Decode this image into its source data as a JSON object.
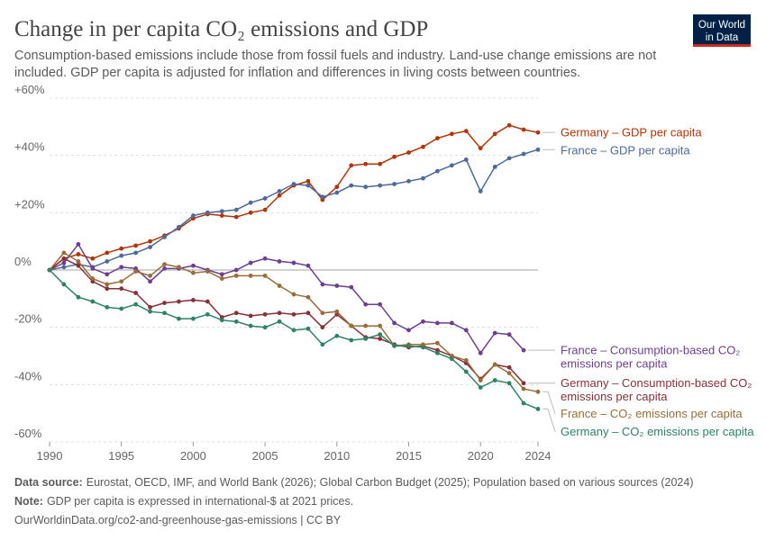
{
  "logo": [
    "Our World",
    "in Data"
  ],
  "chart_data": {
    "type": "line",
    "title": "Change in per capita CO₂ emissions and GDP",
    "subtitle": [
      "Consumption-based emissions include those from fossil fuels and industry. Land-use change emissions are not",
      "included. GDP per capita is adjusted for inflation and differences in living costs between countries."
    ],
    "source_label": "Data source:",
    "source": "Eurostat, OECD, IMF, and World Bank (2026); Global Carbon Budget (2025); Population based on various sources (2024)",
    "note_label": "Note:",
    "note": "GDP per capita is expressed in international-$ at 2021 prices.",
    "url": "OurWorldinData.org/co2-and-greenhouse-gas-emissions | CC BY",
    "x": [
      1990,
      1991,
      1992,
      1993,
      1994,
      1995,
      1996,
      1997,
      1998,
      1999,
      2000,
      2001,
      2002,
      2003,
      2004,
      2005,
      2006,
      2007,
      2008,
      2009,
      2010,
      2011,
      2012,
      2013,
      2014,
      2015,
      2016,
      2017,
      2018,
      2019,
      2020,
      2021,
      2022,
      2023,
      2024
    ],
    "xlim": [
      1990,
      2024
    ],
    "xticks": [
      1990,
      1995,
      2000,
      2005,
      2010,
      2015,
      2020,
      2024
    ],
    "ylim": [
      -60,
      60
    ],
    "yticks": [
      {
        "value": 60,
        "label": "+60%"
      },
      {
        "value": 40,
        "label": "+40%"
      },
      {
        "value": 20,
        "label": "+20%"
      },
      {
        "value": 0,
        "label": "0%"
      },
      {
        "value": -20,
        "label": "-20%"
      },
      {
        "value": -40,
        "label": "-40%"
      },
      {
        "value": -60,
        "label": "-60%"
      }
    ],
    "grid": true,
    "series": [
      {
        "name": "Germany – GDP per capita",
        "color": "#b13507",
        "values": [
          0,
          4,
          5.5,
          4,
          6,
          7.5,
          8.5,
          10,
          12,
          14.5,
          18,
          19.5,
          19,
          18.5,
          20,
          21,
          26,
          29.5,
          31,
          24.5,
          29,
          36.5,
          37,
          37,
          39.5,
          41,
          43,
          46,
          47.5,
          48.5,
          42.5,
          47.5,
          50.5,
          49,
          48
        ]
      },
      {
        "name": "France – GDP per capita",
        "color": "#4c6a9c",
        "values": [
          0,
          1,
          2,
          1,
          3,
          5,
          6,
          8,
          11.5,
          15,
          19,
          20,
          20.5,
          21,
          23.5,
          25,
          27.5,
          30,
          29.5,
          25.5,
          27,
          29.5,
          29,
          29.5,
          30,
          31,
          32,
          34.5,
          36.5,
          38.5,
          27.5,
          36,
          39,
          40.5,
          42
        ]
      },
      {
        "name": "France – Consumption-based CO₂ emissions per capita",
        "color": "#6d3e91",
        "values": [
          0,
          2.5,
          9,
          0.5,
          -1.5,
          1,
          0.5,
          -4,
          0.5,
          0.5,
          1.5,
          0,
          -1.5,
          0,
          2.5,
          4,
          3,
          2.5,
          1.5,
          -5,
          -5.5,
          -6,
          -12,
          -12,
          -18.5,
          -21,
          -18,
          -18.5,
          -18.5,
          -21,
          -29,
          -22,
          -22.5,
          -28,
          null
        ]
      },
      {
        "name": "Germany – Consumption-based CO₂ emissions per capita",
        "color": "#883039",
        "values": [
          0,
          4,
          1.5,
          -4,
          -6.5,
          -6.5,
          -8,
          -13,
          -11.5,
          -11,
          -10.5,
          -11,
          -16.5,
          -15,
          -16,
          -15.5,
          -15,
          -15.5,
          -15,
          -20,
          -15.5,
          -19.5,
          -23.5,
          -24,
          -26,
          -27,
          -26.5,
          -28,
          -30,
          -32.5,
          -38,
          -33,
          -34,
          -39.5,
          null
        ]
      },
      {
        "name": "France – CO₂ emissions per capita",
        "color": "#996d39",
        "values": [
          0,
          6,
          3,
          -3,
          -5,
          -4,
          -0.5,
          -2,
          2,
          1,
          -1,
          -0.5,
          -3,
          -2,
          -2,
          -2,
          -5.5,
          -8.5,
          -9.5,
          -15,
          -14.5,
          -19.5,
          -19.5,
          -19.5,
          -26.5,
          -26,
          -26,
          -25.5,
          -30,
          -31.5,
          -38.5,
          -33,
          -36,
          -41.5,
          -42.5
        ]
      },
      {
        "name": "Germany – CO₂ emissions per capita",
        "color": "#2c8465",
        "values": [
          0,
          -5,
          -9.5,
          -11,
          -13,
          -13.5,
          -12,
          -14.5,
          -15,
          -17,
          -17,
          -15.5,
          -17.5,
          -18,
          -19.5,
          -20,
          -18,
          -21,
          -20.5,
          -26,
          -23,
          -24.5,
          -24,
          -22.5,
          -26.5,
          -26.5,
          -27,
          -29,
          -31,
          -35.5,
          -41,
          -38.5,
          -39.5,
          -46.5,
          -48.5
        ]
      }
    ]
  }
}
